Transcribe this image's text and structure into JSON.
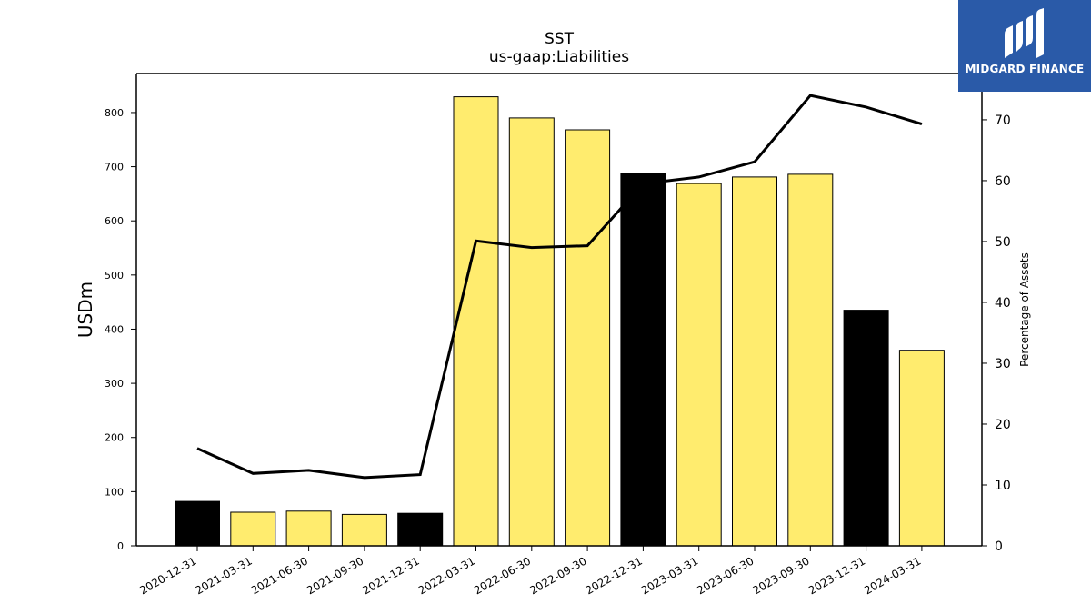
{
  "chart_data": {
    "type": "bar",
    "title": "SST",
    "subtitle": "us-gaap:Liabilities",
    "ylabel": "USDm",
    "y2label": "Percentage of Assets",
    "ylim": [
      0,
      872
    ],
    "y2lim": [
      0,
      77.6
    ],
    "yticks": [
      0,
      100,
      200,
      300,
      400,
      500,
      600,
      700,
      800
    ],
    "y2ticks": [
      0,
      10,
      20,
      30,
      40,
      50,
      60,
      70
    ],
    "categories": [
      "2020-12-31",
      "2021-03-31",
      "2021-06-30",
      "2021-09-30",
      "2021-12-31",
      "2022-03-31",
      "2022-06-30",
      "2022-09-30",
      "2022-12-31",
      "2023-03-31",
      "2023-06-30",
      "2023-09-30",
      "2023-12-31",
      "2024-03-31"
    ],
    "series": [
      {
        "type": "bar",
        "axis": "left",
        "values": [
          82,
          62,
          64,
          58,
          60,
          829,
          790,
          768,
          688,
          669,
          681,
          686,
          435,
          361
        ],
        "colors": [
          "#000000",
          "#ffec6e",
          "#ffec6e",
          "#ffec6e",
          "#000000",
          "#ffec6e",
          "#ffec6e",
          "#ffec6e",
          "#000000",
          "#ffec6e",
          "#ffec6e",
          "#ffec6e",
          "#000000",
          "#ffec6e"
        ]
      },
      {
        "type": "line",
        "axis": "right",
        "values": [
          16.0,
          11.9,
          12.4,
          11.2,
          11.7,
          50.1,
          49.0,
          49.3,
          59.5,
          60.6,
          63.1,
          74.0,
          72.1,
          69.3
        ],
        "color": "#000000"
      }
    ],
    "grid": false,
    "legend": "none"
  },
  "logo": {
    "text": "MIDGARD FINANCE",
    "background": "#2a5aa8"
  }
}
